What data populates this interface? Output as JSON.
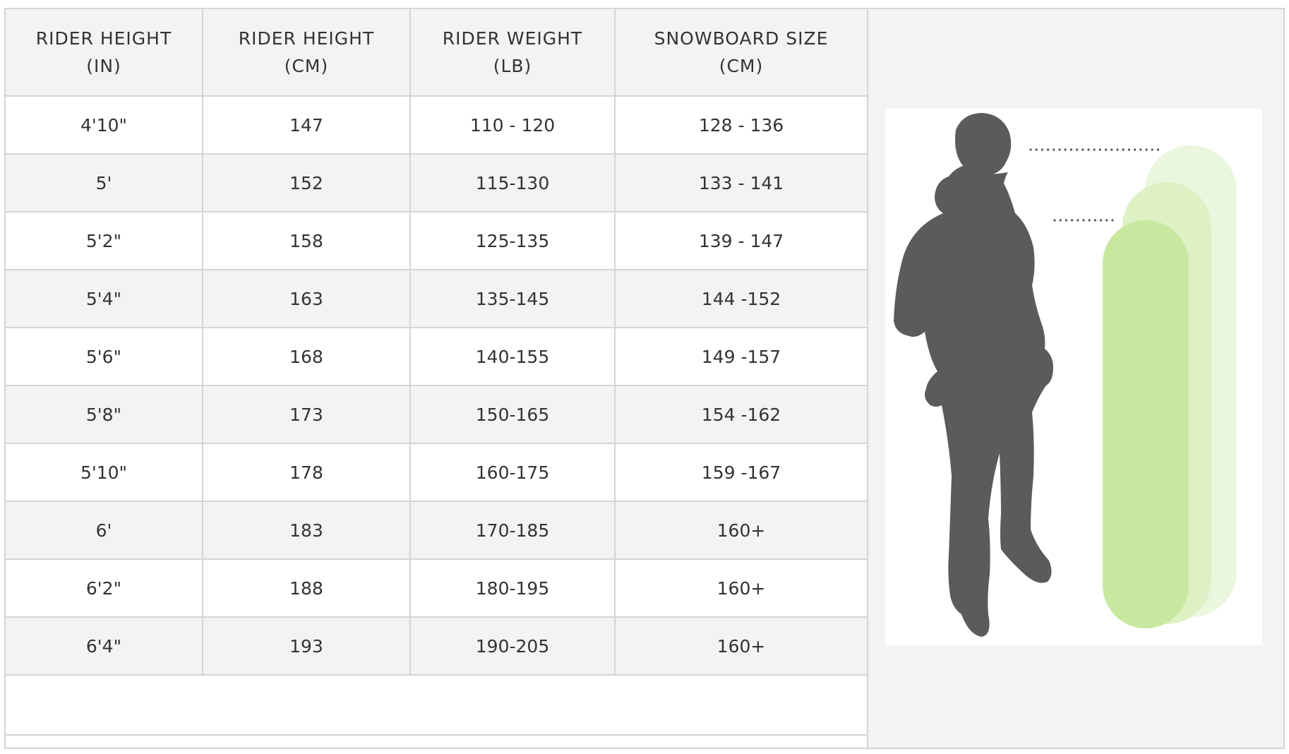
{
  "table": {
    "headers": [
      {
        "line1": "RIDER HEIGHT",
        "line2": "(IN)"
      },
      {
        "line1": "RIDER HEIGHT",
        "line2": "(CM)"
      },
      {
        "line1": "RIDER WEIGHT",
        "line2": "(LB)"
      },
      {
        "line1": "SNOWBOARD SIZE",
        "line2": "(CM)"
      }
    ],
    "rows": [
      {
        "height_in": "4'10\"",
        "height_cm": "147",
        "weight_lb": "110 - 120",
        "board_cm": "128 - 136"
      },
      {
        "height_in": "5'",
        "height_cm": "152",
        "weight_lb": "115-130",
        "board_cm": "133 - 141"
      },
      {
        "height_in": "5'2\"",
        "height_cm": "158",
        "weight_lb": "125-135",
        "board_cm": "139 - 147"
      },
      {
        "height_in": "5'4\"",
        "height_cm": "163",
        "weight_lb": "135-145",
        "board_cm": "144 -152"
      },
      {
        "height_in": "5'6\"",
        "height_cm": "168",
        "weight_lb": "140-155",
        "board_cm": "149 -157"
      },
      {
        "height_in": "5'8\"",
        "height_cm": "173",
        "weight_lb": "150-165",
        "board_cm": "154 -162"
      },
      {
        "height_in": "5'10\"",
        "height_cm": "178",
        "weight_lb": "160-175",
        "board_cm": "159 -167"
      },
      {
        "height_in": "6'",
        "height_cm": "183",
        "weight_lb": "170-185",
        "board_cm": "160+"
      },
      {
        "height_in": "6'2\"",
        "height_cm": "188",
        "weight_lb": "180-195",
        "board_cm": "160+"
      },
      {
        "height_in": "6'4\"",
        "height_cm": "193",
        "weight_lb": "190-205",
        "board_cm": "160+"
      }
    ]
  },
  "illustration": {
    "subject_icon": "rider-silhouette-icon",
    "board_icon": "snowboard-icon",
    "colors": {
      "rider": "#5b5b5b",
      "board_front": "#c8e8a0",
      "board_middle": "#ddf1c4",
      "board_back": "#eaf6dd",
      "guide_dots": "#555555",
      "size_text": "#3d8b1c"
    }
  }
}
